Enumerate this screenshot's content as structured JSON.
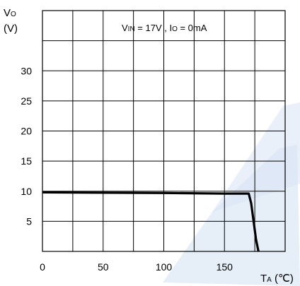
{
  "chart_data": {
    "type": "line",
    "title": "",
    "condition": {
      "vin_main": "V",
      "vin_sub": "IN",
      "vin_rest": " = 17V , I",
      "io_sub": "O",
      "io_rest": " = 0mA"
    },
    "ylabel": {
      "main": "V",
      "sub": "O",
      "unit": "(V)"
    },
    "xlabel": {
      "main": "T",
      "sub": "A",
      "unit": " (℃)"
    },
    "xlim": [
      0,
      200
    ],
    "ylim": [
      0,
      40
    ],
    "x_ticks": [
      0,
      50,
      100,
      150
    ],
    "y_ticks": [
      5,
      10,
      15,
      20,
      25,
      30
    ],
    "x_tick_labels": [
      "0",
      "50",
      "100",
      "150"
    ],
    "y_tick_labels": [
      "5",
      "10",
      "15",
      "20",
      "25",
      "30"
    ],
    "grid": true,
    "series": [
      {
        "x": [
          0,
          100,
          150,
          170,
          172,
          174,
          176,
          178
        ],
        "y": [
          9.8,
          9.7,
          9.6,
          9.6,
          8.0,
          5.0,
          2.0,
          0
        ],
        "color": "#000000"
      }
    ],
    "colors": {
      "watermark": "#d5e2f4"
    }
  }
}
